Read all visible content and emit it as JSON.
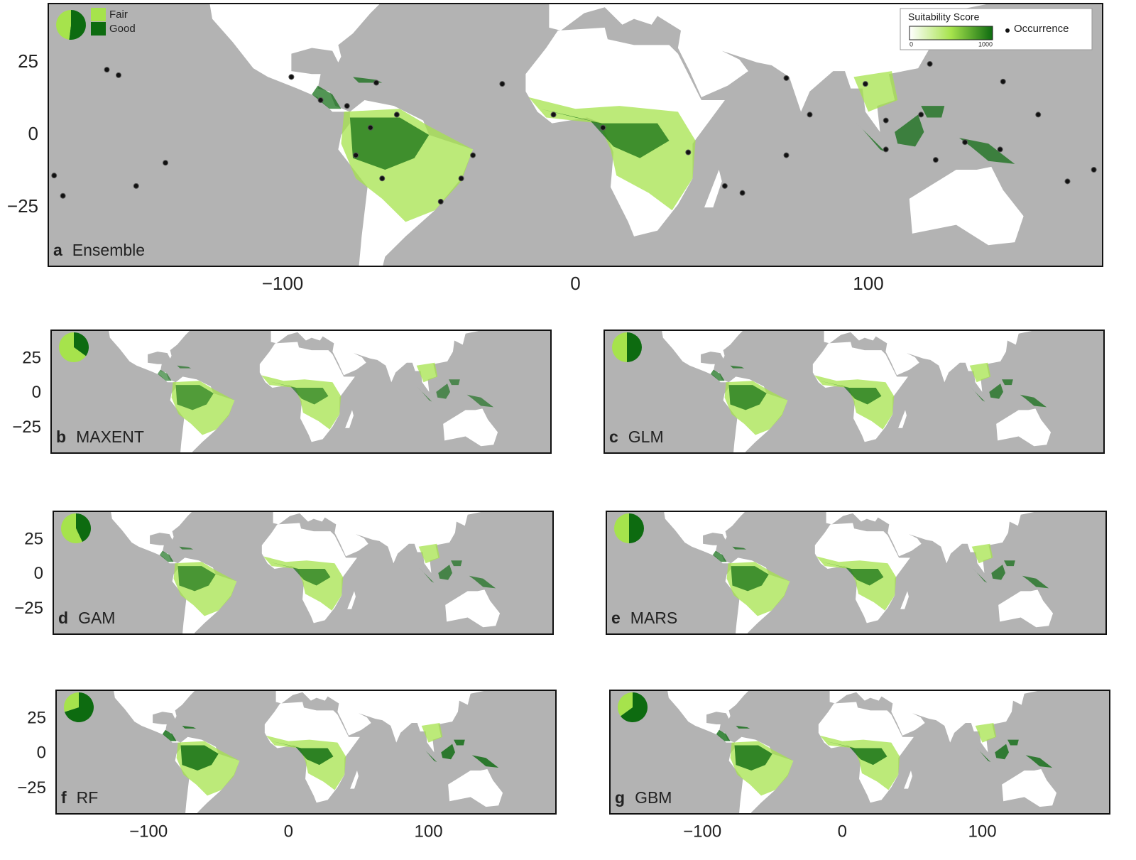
{
  "panels": [
    {
      "letter": "a",
      "name": "Ensemble",
      "pie": {
        "fair": 48,
        "good": 52
      },
      "xlim": [
        -180,
        180
      ],
      "ylim": [
        -45.3,
        45.3
      ],
      "xticks": [
        {
          "value": -100,
          "label": "−100"
        },
        0,
        100
      ],
      "yticks": [
        {
          "value": -25,
          "label": "−25"
        },
        0,
        25
      ],
      "occurrences": {
        "lon": [
          -160,
          -156,
          -140,
          -150,
          -178,
          -175,
          -97,
          -87,
          -78,
          -75,
          -70,
          -61,
          -68,
          -66,
          -39,
          -35,
          -46,
          -25,
          -7.5,
          9.4,
          38.5,
          51,
          57,
          72,
          80,
          72,
          99,
          106,
          121,
          118,
          133,
          145,
          146,
          158,
          168,
          177,
          106,
          123
        ],
        "lat": [
          22.5,
          20.6,
          -9.6,
          -17.6,
          -14,
          -21,
          20,
          12,
          10,
          -7,
          2.5,
          7,
          18,
          -15,
          -15,
          -7,
          -23,
          17.6,
          7,
          2.5,
          -6,
          -17.6,
          -20,
          19.6,
          7,
          -7,
          17.6,
          5,
          24.5,
          7,
          -2.5,
          -5,
          18.4,
          7,
          -16,
          -12,
          -5,
          -8.6
        ]
      }
    },
    {
      "letter": "b",
      "name": "MAXENT",
      "pie": {
        "fair": 65,
        "good": 35
      },
      "xlim": [
        -166,
        191
      ],
      "ylim": [
        -43,
        45.4
      ],
      "yticks": [
        {
          "value": -25,
          "label": "−25"
        },
        0,
        25
      ]
    },
    {
      "letter": "c",
      "name": "GLM",
      "pie": {
        "fair": 50,
        "good": 50
      },
      "xlim": [
        -166,
        191
      ],
      "ylim": [
        -43,
        45.4
      ]
    },
    {
      "letter": "d",
      "name": "GAM",
      "pie": {
        "fair": 57,
        "good": 43
      },
      "xlim": [
        -166,
        191
      ],
      "ylim": [
        -43,
        45.4
      ],
      "yticks": [
        {
          "value": -25,
          "label": "−25"
        },
        0,
        25
      ]
    },
    {
      "letter": "e",
      "name": "MARS",
      "pie": {
        "fair": 50,
        "good": 50
      },
      "xlim": [
        -166,
        191
      ],
      "ylim": [
        -43,
        45.4
      ]
    },
    {
      "letter": "f",
      "name": "RF",
      "pie": {
        "fair": 30,
        "good": 70
      },
      "xlim": [
        -166,
        191
      ],
      "ylim": [
        -43,
        45.4
      ],
      "xticks": [
        {
          "value": -100,
          "label": "−100"
        },
        0,
        100
      ],
      "yticks": [
        {
          "value": -25,
          "label": "−25"
        },
        0,
        25
      ]
    },
    {
      "letter": "g",
      "name": "GBM",
      "pie": {
        "fair": 35,
        "good": 65
      },
      "xlim": [
        -166,
        191
      ],
      "ylim": [
        -43,
        45.4
      ],
      "xticks": [
        {
          "value": -100,
          "label": "−100"
        },
        0,
        100
      ]
    }
  ],
  "legend": {
    "fair_label": "Fair",
    "good_label": "Good",
    "fair_color": "#a6e34c",
    "good_color": "#0d6b10",
    "title": "Suitability Score",
    "colorbar": {
      "lim": [
        0,
        1000
      ],
      "ticks": [
        0,
        1000
      ]
    },
    "occurrence": "Occurrence"
  }
}
